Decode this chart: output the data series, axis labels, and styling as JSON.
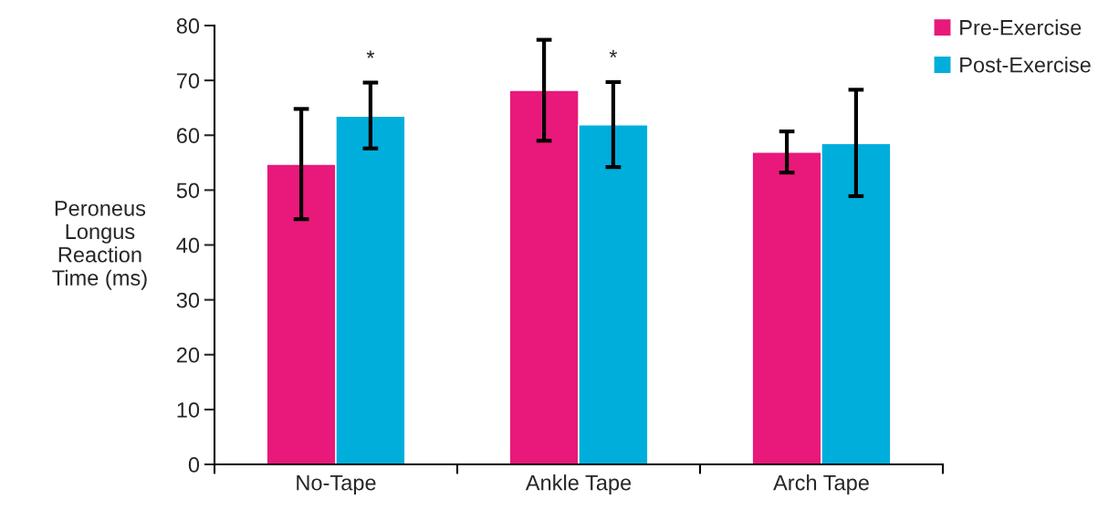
{
  "chart_data": {
    "type": "bar",
    "ylabel": "Peroneus\nLongus\nReaction\nTime (ms)",
    "categories": [
      "No-Tape",
      "Ankle Tape",
      "Arch Tape"
    ],
    "series": [
      {
        "name": "Pre-Exercise",
        "color": "#e8197a",
        "values": [
          54.7,
          68.2,
          56.9
        ],
        "errors": [
          [
            44.7,
            64.8
          ],
          [
            59.0,
            77.4
          ],
          [
            53.2,
            60.7
          ]
        ]
      },
      {
        "name": "Post-Exercise",
        "color": "#00aedb",
        "values": [
          63.5,
          61.9,
          58.5
        ],
        "errors": [
          [
            57.6,
            69.6
          ],
          [
            54.2,
            69.7
          ],
          [
            48.9,
            68.3
          ]
        ]
      }
    ],
    "annotations": [
      "*",
      "*"
    ],
    "ylim": [
      0,
      80
    ],
    "yticks": [
      0,
      10,
      20,
      30,
      40,
      50,
      60,
      70,
      80
    ],
    "grid": false,
    "legend": "top right"
  }
}
